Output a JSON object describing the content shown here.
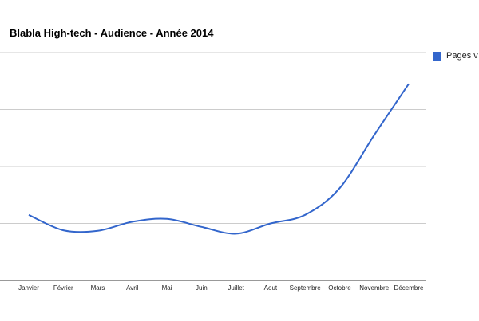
{
  "title": "Blabla High-tech - Audience - Année 2014",
  "chart_data": {
    "type": "line",
    "title": "Blabla High-tech - Audience - Année 2014",
    "xlabel": "",
    "ylabel": "",
    "categories": [
      "Janvier",
      "Février",
      "Mars",
      "Avril",
      "Mai",
      "Juin",
      "Juillet",
      "Aout",
      "Septembre",
      "Octobre",
      "Novembre",
      "Décembre"
    ],
    "series": [
      {
        "name": "Pages v",
        "color": "#3366cc",
        "values": [
          1.15,
          0.88,
          0.87,
          1.03,
          1.08,
          0.94,
          0.82,
          1.0,
          1.15,
          1.62,
          2.55,
          3.45
        ]
      }
    ],
    "ylim": [
      0,
      4
    ],
    "grid": true,
    "legend": "right"
  }
}
